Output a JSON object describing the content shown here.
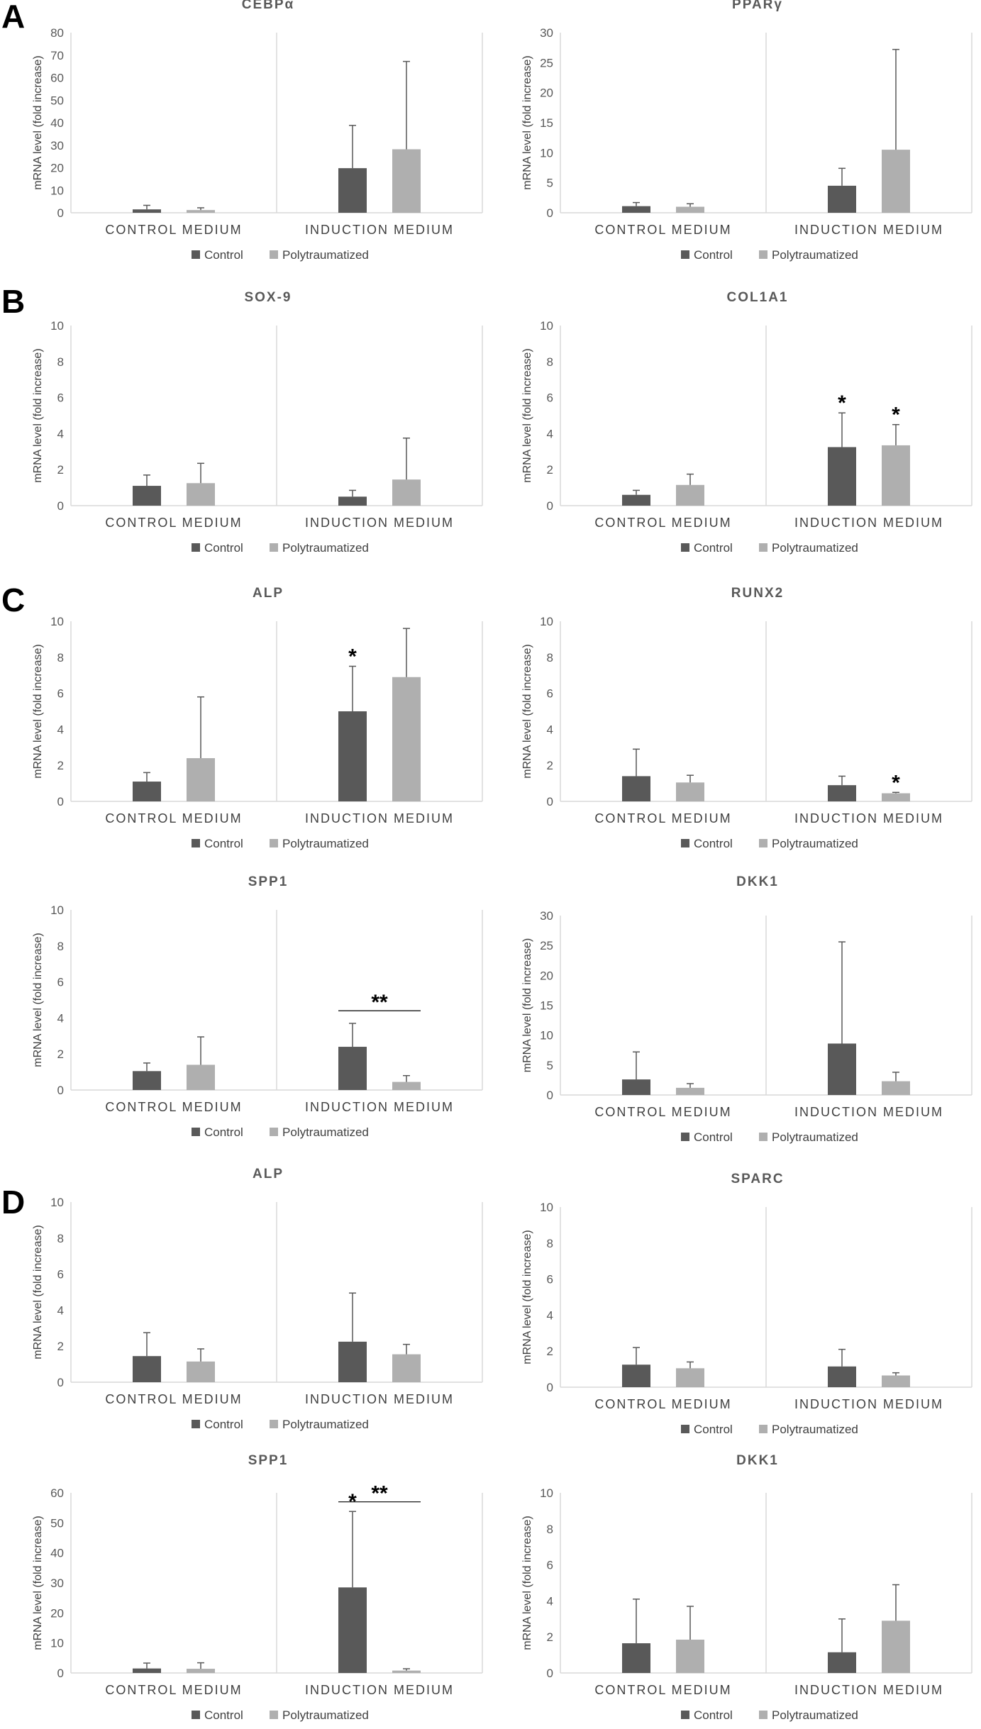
{
  "colors": {
    "control": "#595959",
    "polytraumatized": "#AFAFAF",
    "axis": "#D9D9D9",
    "error": "#595959"
  },
  "panel_labels": [
    "A",
    "B",
    "C",
    "D"
  ],
  "common": {
    "ylabel": "mRNA level (fold increase)",
    "categories": [
      "CONTROL MEDIUM",
      "INDUCTION MEDIUM"
    ],
    "legend": [
      "Control",
      "Polytraumatized"
    ]
  },
  "chart_data": [
    {
      "type": "bar",
      "panel": "A",
      "title": "CEBPα",
      "ylim": [
        0,
        80
      ],
      "yticks": [
        0,
        10,
        20,
        30,
        40,
        50,
        60,
        70,
        80
      ],
      "ylabel": "mRNA level (fold increase)",
      "categories": [
        "CONTROL MEDIUM",
        "INDUCTION MEDIUM"
      ],
      "series": [
        {
          "name": "Control",
          "values": [
            1.5,
            19.8
          ],
          "errors": [
            1.8,
            19
          ]
        },
        {
          "name": "Polytraumatized",
          "values": [
            1.2,
            28.2
          ],
          "errors": [
            1.0,
            39
          ]
        }
      ],
      "annotations": []
    },
    {
      "type": "bar",
      "panel": "A",
      "title": "PPARγ",
      "ylim": [
        0,
        30
      ],
      "yticks": [
        0,
        5,
        10,
        15,
        20,
        25,
        30
      ],
      "ylabel": "mRNA level (fold increase)",
      "categories": [
        "CONTROL MEDIUM",
        "INDUCTION MEDIUM"
      ],
      "series": [
        {
          "name": "Control",
          "values": [
            1.1,
            4.5
          ],
          "errors": [
            0.6,
            2.9
          ]
        },
        {
          "name": "Polytraumatized",
          "values": [
            1.0,
            10.5
          ],
          "errors": [
            0.5,
            16.7
          ]
        }
      ],
      "annotations": []
    },
    {
      "type": "bar",
      "panel": "B",
      "title": "SOX-9",
      "ylim": [
        0,
        10
      ],
      "yticks": [
        0,
        2,
        4,
        6,
        8,
        10
      ],
      "ylabel": "mRNA level (fold increase)",
      "categories": [
        "CONTROL MEDIUM",
        "INDUCTION MEDIUM"
      ],
      "series": [
        {
          "name": "Control",
          "values": [
            1.1,
            0.5
          ],
          "errors": [
            0.6,
            0.35
          ]
        },
        {
          "name": "Polytraumatized",
          "values": [
            1.25,
            1.45
          ],
          "errors": [
            1.1,
            2.3
          ]
        }
      ],
      "annotations": []
    },
    {
      "type": "bar",
      "panel": "B",
      "title": "COL1A1",
      "ylim": [
        0,
        10
      ],
      "yticks": [
        0,
        2,
        4,
        6,
        8,
        10
      ],
      "ylabel": "mRNA level (fold increase)",
      "categories": [
        "CONTROL MEDIUM",
        "INDUCTION MEDIUM"
      ],
      "series": [
        {
          "name": "Control",
          "values": [
            0.6,
            3.25
          ],
          "errors": [
            0.25,
            1.9
          ]
        },
        {
          "name": "Polytraumatized",
          "values": [
            1.15,
            3.35
          ],
          "errors": [
            0.6,
            1.15
          ]
        }
      ],
      "annotations": [
        {
          "type": "star",
          "text": "*",
          "series": 0,
          "category": 1
        },
        {
          "type": "star",
          "text": "*",
          "series": 1,
          "category": 1
        }
      ]
    },
    {
      "type": "bar",
      "panel": "C",
      "title": "ALP",
      "ylim": [
        0,
        10
      ],
      "yticks": [
        0,
        2,
        4,
        6,
        8,
        10
      ],
      "ylabel": "mRNA level (fold increase)",
      "categories": [
        "CONTROL MEDIUM",
        "INDUCTION MEDIUM"
      ],
      "series": [
        {
          "name": "Control",
          "values": [
            1.1,
            5.0
          ],
          "errors": [
            0.5,
            2.5
          ]
        },
        {
          "name": "Polytraumatized",
          "values": [
            2.4,
            6.9
          ],
          "errors": [
            3.4,
            2.7
          ]
        }
      ],
      "annotations": [
        {
          "type": "star",
          "text": "*",
          "series": 0,
          "category": 1
        }
      ]
    },
    {
      "type": "bar",
      "panel": "C",
      "title": "RUNX2",
      "ylim": [
        0,
        10
      ],
      "yticks": [
        0,
        2,
        4,
        6,
        8,
        10
      ],
      "ylabel": "mRNA level (fold increase)",
      "categories": [
        "CONTROL MEDIUM",
        "INDUCTION MEDIUM"
      ],
      "series": [
        {
          "name": "Control",
          "values": [
            1.4,
            0.9
          ],
          "errors": [
            1.5,
            0.5
          ]
        },
        {
          "name": "Polytraumatized",
          "values": [
            1.05,
            0.45
          ],
          "errors": [
            0.4,
            0.05
          ]
        }
      ],
      "annotations": [
        {
          "type": "star",
          "text": "*",
          "series": 1,
          "category": 1
        }
      ]
    },
    {
      "type": "bar",
      "panel": "C",
      "title": "SPP1",
      "ylim": [
        0,
        10
      ],
      "yticks": [
        0,
        2,
        4,
        6,
        8,
        10
      ],
      "ylabel": "mRNA level (fold increase)",
      "categories": [
        "CONTROL MEDIUM",
        "INDUCTION MEDIUM"
      ],
      "series": [
        {
          "name": "Control",
          "values": [
            1.05,
            2.4
          ],
          "errors": [
            0.45,
            1.3
          ]
        },
        {
          "name": "Polytraumatized",
          "values": [
            1.4,
            0.45
          ],
          "errors": [
            1.55,
            0.35
          ]
        }
      ],
      "annotations": [
        {
          "type": "bracket",
          "text": "**",
          "category": 1,
          "y": 4.4
        }
      ]
    },
    {
      "type": "bar",
      "panel": "C",
      "title": "DKK1",
      "ylim": [
        0,
        30
      ],
      "yticks": [
        0,
        5,
        10,
        15,
        20,
        25,
        30
      ],
      "ylabel": "mRNA level (fold increase)",
      "categories": [
        "CONTROL MEDIUM",
        "INDUCTION MEDIUM"
      ],
      "series": [
        {
          "name": "Control",
          "values": [
            2.6,
            8.6
          ],
          "errors": [
            4.6,
            17
          ]
        },
        {
          "name": "Polytraumatized",
          "values": [
            1.2,
            2.3
          ],
          "errors": [
            0.7,
            1.5
          ]
        }
      ],
      "annotations": []
    },
    {
      "type": "bar",
      "panel": "D",
      "title": "ALP",
      "ylim": [
        0,
        10
      ],
      "yticks": [
        0,
        2,
        4,
        6,
        8,
        10
      ],
      "ylabel": "mRNA level (fold increase)",
      "categories": [
        "CONTROL MEDIUM",
        "INDUCTION MEDIUM"
      ],
      "series": [
        {
          "name": "Control",
          "values": [
            1.45,
            2.25
          ],
          "errors": [
            1.3,
            2.7
          ]
        },
        {
          "name": "Polytraumatized",
          "values": [
            1.15,
            1.55
          ],
          "errors": [
            0.7,
            0.55
          ]
        }
      ],
      "annotations": []
    },
    {
      "type": "bar",
      "panel": "D",
      "title": "SPARC",
      "ylim": [
        0,
        10
      ],
      "yticks": [
        0,
        2,
        4,
        6,
        8,
        10
      ],
      "ylabel": "mRNA level (fold increase)",
      "categories": [
        "CONTROL MEDIUM",
        "INDUCTION MEDIUM"
      ],
      "series": [
        {
          "name": "Control",
          "values": [
            1.25,
            1.15
          ],
          "errors": [
            0.95,
            0.95
          ]
        },
        {
          "name": "Polytraumatized",
          "values": [
            1.05,
            0.65
          ],
          "errors": [
            0.35,
            0.15
          ]
        }
      ],
      "annotations": []
    },
    {
      "type": "bar",
      "panel": "D",
      "title": "SPP1",
      "ylim": [
        0,
        60
      ],
      "yticks": [
        0,
        10,
        20,
        30,
        40,
        50,
        60
      ],
      "ylabel": "mRNA level (fold increase)",
      "categories": [
        "CONTROL MEDIUM",
        "INDUCTION MEDIUM"
      ],
      "series": [
        {
          "name": "Control",
          "values": [
            1.5,
            28.5
          ],
          "errors": [
            1.8,
            25.3
          ]
        },
        {
          "name": "Polytraumatized",
          "values": [
            1.4,
            0.8
          ],
          "errors": [
            2.0,
            0.6
          ]
        }
      ],
      "annotations": [
        {
          "type": "star",
          "text": "*",
          "series": 0,
          "category": 1
        },
        {
          "type": "bracket",
          "text": "**",
          "category": 1,
          "y": 57
        }
      ]
    },
    {
      "type": "bar",
      "panel": "D",
      "title": "DKK1",
      "ylim": [
        0,
        10
      ],
      "yticks": [
        0,
        2,
        4,
        6,
        8,
        10
      ],
      "ylabel": "mRNA level (fold increase)",
      "categories": [
        "CONTROL MEDIUM",
        "INDUCTION MEDIUM"
      ],
      "series": [
        {
          "name": "Control",
          "values": [
            1.65,
            1.15
          ],
          "errors": [
            2.45,
            1.85
          ]
        },
        {
          "name": "Polytraumatized",
          "values": [
            1.85,
            2.9
          ],
          "errors": [
            1.85,
            2.0
          ]
        }
      ],
      "annotations": []
    }
  ]
}
